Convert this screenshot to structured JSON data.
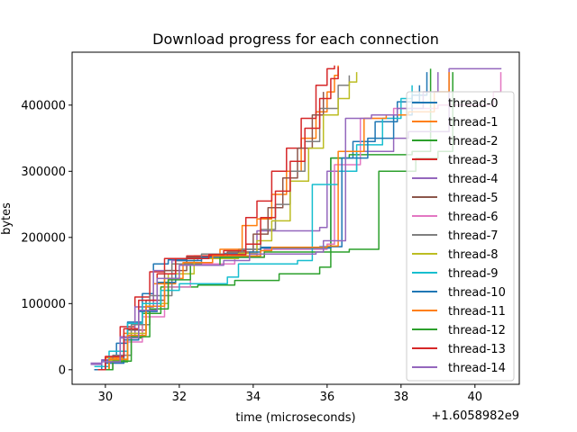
{
  "chart_data": {
    "type": "line",
    "title": "Download progress for each connection",
    "xlabel": "time (microseconds)",
    "ylabel": "bytes",
    "offset_label": "+1.6058982e9",
    "xlim": [
      29.1,
      41.2
    ],
    "ylim": [
      -22000,
      480000
    ],
    "xticks": [
      30,
      32,
      34,
      36,
      38,
      40
    ],
    "xtick_labels": [
      "30",
      "32",
      "34",
      "36",
      "38",
      "40"
    ],
    "yticks": [
      0,
      100000,
      200000,
      300000,
      400000
    ],
    "ytick_labels": [
      "0",
      "100000",
      "200000",
      "300000",
      "400000"
    ],
    "grid": false,
    "legend_position": "center-right",
    "series": [
      {
        "name": "thread-0",
        "color": "#1f77b4",
        "x": [
          29.7,
          29.9,
          30.3,
          30.6,
          31.0,
          31.3,
          31.7,
          32.2,
          33.2,
          33.6,
          34.2,
          35.8,
          36.1,
          36.7,
          37.3,
          37.9,
          38.5
        ],
        "y": [
          0,
          14000,
          40000,
          72000,
          115000,
          160000,
          166000,
          170000,
          176000,
          182000,
          185000,
          186000,
          320000,
          345000,
          375000,
          405000,
          430000
        ]
      },
      {
        "name": "thread-1",
        "color": "#ff7f0e",
        "x": [
          29.8,
          30.0,
          30.5,
          30.9,
          31.3,
          31.9,
          32.4,
          33.1,
          33.7,
          34.1,
          34.5,
          34.9,
          35.3,
          35.7,
          36.0,
          36.2,
          36.3
        ],
        "y": [
          0,
          18000,
          55000,
          95000,
          130000,
          165000,
          172000,
          182000,
          218000,
          228000,
          265000,
          300000,
          350000,
          390000,
          420000,
          445000,
          460000
        ]
      },
      {
        "name": "thread-2",
        "color": "#2ca02c",
        "x": [
          29.8,
          30.1,
          30.6,
          31.0,
          31.5,
          32.5,
          33.5,
          34.7,
          35.8,
          36.1,
          36.6,
          38.3,
          38.8
        ],
        "y": [
          0,
          12000,
          48000,
          85000,
          125000,
          128000,
          135000,
          145000,
          155000,
          320000,
          325000,
          330000,
          455000
        ]
      },
      {
        "name": "thread-3",
        "color": "#d62728",
        "x": [
          29.7,
          30.0,
          30.4,
          30.8,
          31.2,
          31.6,
          32.2,
          33.2,
          33.8,
          34.1,
          34.5,
          34.9,
          35.3,
          35.7,
          36.0,
          36.2
        ],
        "y": [
          0,
          20000,
          65000,
          110000,
          148000,
          168000,
          172000,
          180000,
          230000,
          255000,
          300000,
          335000,
          380000,
          430000,
          455000,
          460000
        ]
      },
      {
        "name": "thread-4",
        "color": "#9467bd",
        "x": [
          29.6,
          29.9,
          30.4,
          30.8,
          31.3,
          31.8,
          32.5,
          33.4,
          34.1,
          35.8,
          36.0,
          36.8,
          37.8,
          38.2,
          39.3,
          40.7
        ],
        "y": [
          10000,
          15000,
          50000,
          95000,
          150000,
          165000,
          170000,
          172000,
          210000,
          215000,
          300000,
          330000,
          350000,
          360000,
          455000,
          456000
        ]
      },
      {
        "name": "thread-5",
        "color": "#8c564b",
        "x": [
          29.8,
          30.1,
          30.6,
          31.1,
          31.6,
          32.2,
          33.3,
          34.0,
          34.4,
          34.8,
          35.2,
          35.6,
          35.9
        ],
        "y": [
          0,
          15000,
          60000,
          105000,
          150000,
          170000,
          178000,
          205000,
          245000,
          290000,
          335000,
          385000,
          420000
        ]
      },
      {
        "name": "thread-6",
        "color": "#e377c2",
        "x": [
          29.8,
          30.0,
          30.5,
          31.0,
          31.6,
          32.3,
          33.5,
          34.3,
          36.0,
          36.2,
          36.9,
          37.8,
          39.0,
          40.5,
          40.7
        ],
        "y": [
          0,
          10000,
          42000,
          80000,
          125000,
          160000,
          170000,
          182000,
          190000,
          310000,
          380000,
          395000,
          400000,
          420000,
          450000
        ]
      },
      {
        "name": "thread-7",
        "color": "#7f7f7f",
        "x": [
          29.8,
          30.2,
          30.7,
          31.2,
          31.8,
          32.6,
          33.7,
          34.2,
          34.6,
          35.0,
          35.4,
          35.8,
          36.3,
          36.6
        ],
        "y": [
          0,
          22000,
          68000,
          112000,
          160000,
          175000,
          182000,
          212000,
          250000,
          300000,
          345000,
          395000,
          430000,
          445000
        ]
      },
      {
        "name": "thread-8",
        "color": "#bcbd22",
        "x": [
          29.8,
          30.1,
          30.6,
          31.1,
          31.7,
          32.4,
          33.6,
          34.1,
          34.5,
          35.0,
          35.5,
          35.9,
          36.3,
          36.6,
          36.8
        ],
        "y": [
          0,
          14000,
          55000,
          100000,
          145000,
          168000,
          176000,
          195000,
          225000,
          285000,
          335000,
          385000,
          410000,
          435000,
          450000
        ]
      },
      {
        "name": "thread-9",
        "color": "#17becf",
        "x": [
          29.7,
          30.1,
          30.6,
          31.0,
          31.5,
          32.0,
          33.3,
          33.6,
          35.2,
          35.6,
          36.3,
          36.8,
          37.5,
          38.0,
          38.3
        ],
        "y": [
          5000,
          28000,
          70000,
          100000,
          120000,
          130000,
          140000,
          160000,
          165000,
          280000,
          300000,
          340000,
          380000,
          410000,
          430000
        ]
      },
      {
        "name": "thread-10",
        "color": "#1f77b4",
        "x": [
          29.7,
          30.0,
          30.5,
          30.9,
          31.4,
          31.9,
          32.6,
          33.9,
          34.2,
          36.1,
          36.4,
          37.1,
          37.8,
          38.3,
          38.7
        ],
        "y": [
          0,
          10000,
          45000,
          88000,
          132000,
          165000,
          170000,
          178000,
          184000,
          186000,
          320000,
          350000,
          385000,
          415000,
          450000
        ]
      },
      {
        "name": "thread-11",
        "color": "#ff7f0e",
        "x": [
          29.8,
          30.1,
          30.6,
          31.1,
          31.6,
          32.1,
          32.9,
          34.2,
          34.5,
          36.0,
          36.3,
          37.0,
          37.6,
          38.2,
          38.9,
          39.3
        ],
        "y": [
          0,
          16000,
          52000,
          96000,
          138000,
          162000,
          172000,
          180000,
          185000,
          187000,
          330000,
          380000,
          385000,
          390000,
          420000,
          450000
        ]
      },
      {
        "name": "thread-12",
        "color": "#2ca02c",
        "x": [
          29.9,
          30.2,
          30.7,
          31.2,
          31.7,
          32.3,
          33.1,
          34.3,
          36.6,
          37.4,
          38.4,
          39.0,
          39.4
        ],
        "y": [
          0,
          13000,
          50000,
          92000,
          136000,
          158000,
          170000,
          178000,
          182000,
          300000,
          320000,
          330000,
          450000
        ]
      },
      {
        "name": "thread-13",
        "color": "#d62728",
        "x": [
          29.8,
          30.0,
          30.5,
          30.9,
          31.4,
          31.9,
          32.8,
          33.8,
          34.2,
          34.6,
          35.0,
          35.4,
          35.8,
          36.1,
          36.3
        ],
        "y": [
          0,
          20000,
          62000,
          105000,
          145000,
          168000,
          174000,
          190000,
          230000,
          270000,
          315000,
          365000,
          410000,
          440000,
          458000
        ]
      },
      {
        "name": "thread-14",
        "color": "#9467bd",
        "x": [
          29.6,
          29.9,
          30.4,
          30.9,
          31.4,
          32.0,
          33.2,
          33.9,
          35.7,
          35.9,
          36.5,
          37.2,
          37.9,
          38.6,
          39.0
        ],
        "y": [
          8000,
          12000,
          48000,
          90000,
          138000,
          158000,
          165000,
          175000,
          178000,
          195000,
          380000,
          385000,
          395000,
          420000,
          450000
        ]
      }
    ]
  }
}
